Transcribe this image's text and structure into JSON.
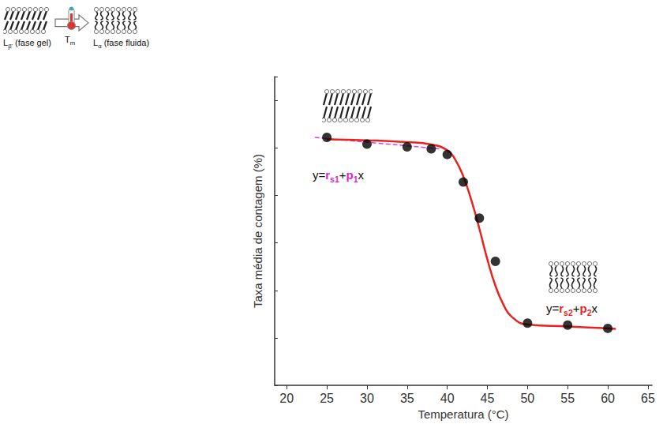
{
  "chart_data": {
    "type": "scatter",
    "x_label": "Temperatura (°C)",
    "y_label": "Taxa média de contagem (%)",
    "xlim": [
      18.5,
      65.5
    ],
    "xticks": [
      20,
      25,
      30,
      35,
      40,
      45,
      50,
      55,
      60,
      65
    ],
    "ylim": [
      0,
      6.5
    ],
    "yticks": [
      0,
      1,
      2,
      3,
      4,
      5,
      6
    ],
    "grid": false,
    "tick_labels": "x",
    "series": [
      {
        "type": "line",
        "color": "#e040d8",
        "line_style": "dashed",
        "x": [
          23.5,
          39
        ],
        "values": [
          5.22,
          4.98
        ]
      },
      {
        "type": "line",
        "color": "#e8231f",
        "line_style": "solid",
        "x": [
          25,
          30,
          35,
          38,
          40,
          41,
          42,
          43,
          44,
          45,
          46,
          47,
          48,
          50,
          55,
          60,
          61
        ],
        "values": [
          5.18,
          5.16,
          5.12,
          5.07,
          4.95,
          4.75,
          4.4,
          3.9,
          3.3,
          2.65,
          2.1,
          1.7,
          1.45,
          1.28,
          1.24,
          1.2,
          1.19
        ]
      },
      {
        "type": "scatter",
        "color": "#000000",
        "marker": "circle",
        "x": [
          25,
          30,
          35,
          38,
          40,
          42,
          44,
          46,
          50,
          55,
          60
        ],
        "values": [
          5.22,
          5.08,
          5.02,
          4.98,
          4.86,
          4.28,
          3.52,
          2.61,
          1.31,
          1.27,
          1.2
        ]
      }
    ],
    "annotations": [
      {
        "parts": [
          {
            "text": "y="
          },
          {
            "text": "r",
            "sub": "s1",
            "color": "#e020d0"
          },
          {
            "text": "+"
          },
          {
            "text": "p",
            "sub": "1",
            "color": "#e020d0"
          },
          {
            "text": "x"
          }
        ]
      },
      {
        "parts": [
          {
            "text": "y="
          },
          {
            "text": "r",
            "sub": "s2",
            "color": "#e8231f"
          },
          {
            "text": "+"
          },
          {
            "text": "p",
            "sub": "2",
            "color": "#e8231f"
          },
          {
            "text": "x"
          }
        ]
      }
    ],
    "diagram": {
      "phase_before": {
        "symbol": "L",
        "sub": "β'",
        "text": " (fase gel)"
      },
      "transition": {
        "symbol": "T",
        "sub": "m"
      },
      "phase_after": {
        "symbol": "L",
        "sub": "α",
        "text": " (fase fluida)"
      }
    }
  }
}
